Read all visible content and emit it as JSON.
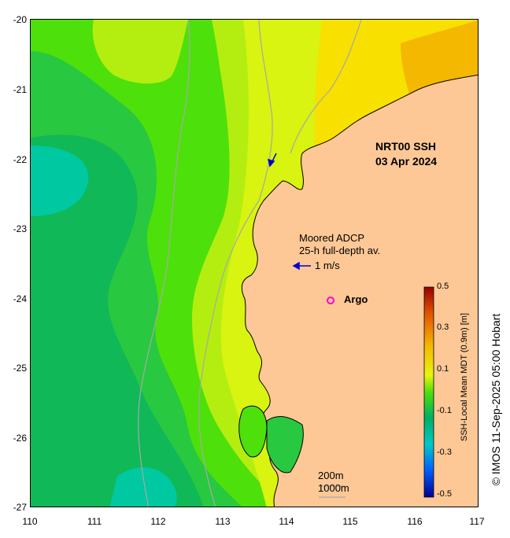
{
  "map": {
    "title_line1": "NRT00 SSH",
    "title_line2": "03 Apr 2024",
    "adcp_line1": "Moored ADCP",
    "adcp_line2": "25-h full-depth av.",
    "speed_label": "1 m/s",
    "argo_label": "Argo",
    "isobath_1": "200m",
    "isobath_2": "1000m",
    "lat_labels": [
      "-20",
      "-21",
      "-22",
      "-23",
      "-24",
      "-25",
      "-26",
      "-27"
    ],
    "lon_labels": [
      "110",
      "111",
      "112",
      "113",
      "114",
      "115",
      "116",
      "117"
    ],
    "colorbar_title": "SSH-Local Mean MDT (0.9m) [m]",
    "colorbar_labels": [
      "0.5",
      "0.3",
      "0.1",
      "-0.1",
      "-0.3",
      "-0.5"
    ],
    "credit": "© IMOS 11-Sep-2025 05:00 Hobart",
    "colors": {
      "land": "#fdc896",
      "ssh_high": "#f4b800",
      "ssh_mid": "#e8f410",
      "ssh_neutral": "#4ee00a",
      "ssh_low": "#00b060",
      "ssh_lowest": "#00c8a0",
      "argo_marker": "#ff00cc",
      "velocity_arrow": "#0000cc"
    }
  }
}
